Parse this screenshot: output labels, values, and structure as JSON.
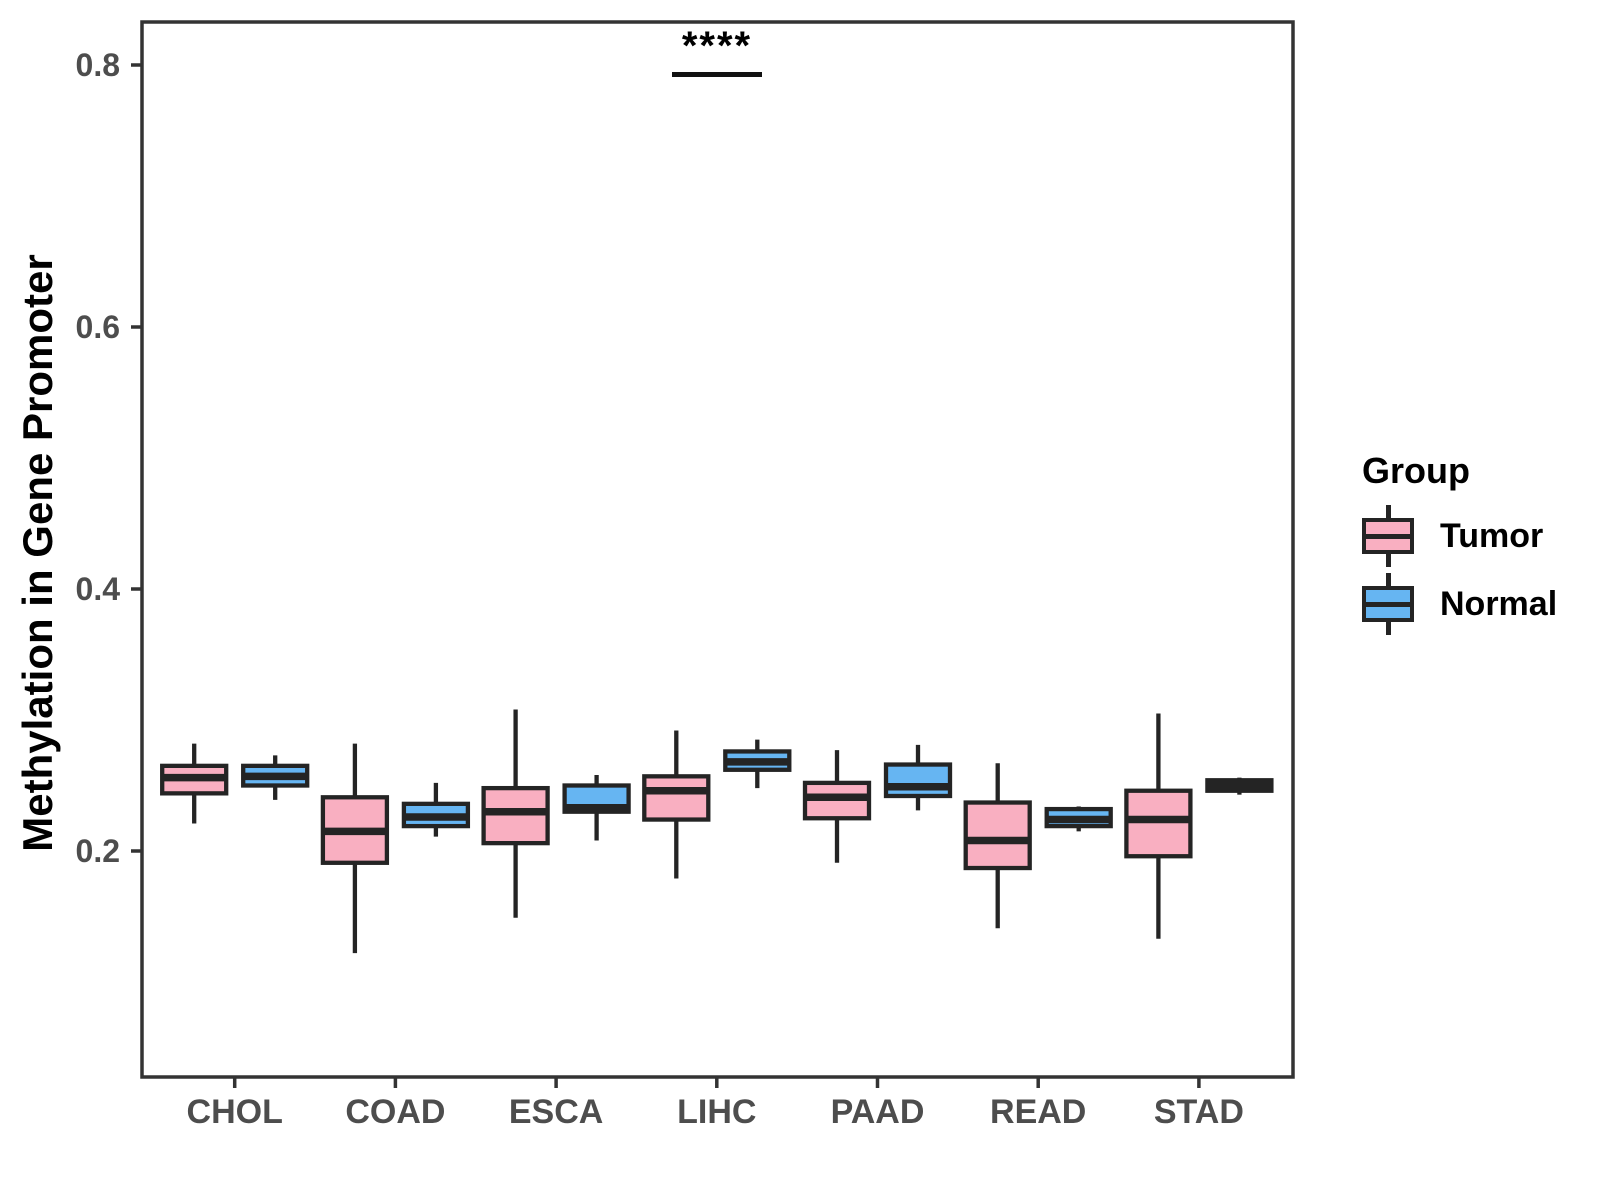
{
  "figure": {
    "background": "#ffffff"
  },
  "chart_data": {
    "type": "boxplot",
    "title": "",
    "xlabel": "",
    "ylabel": "Methylation in Gene Promoter",
    "categories": [
      "CHOL",
      "COAD",
      "ESCA",
      "LIHC",
      "PAAD",
      "READ",
      "STAD"
    ],
    "yticks": [
      0.2,
      0.4,
      0.6,
      0.8
    ],
    "ylim": [
      0.03,
      0.833
    ],
    "grid": false,
    "panel_border": true,
    "legend_position": "right",
    "series": [
      {
        "name": "Tumor",
        "fill": "#F9AFC1",
        "boxes": [
          {
            "min": 0.221,
            "q1": 0.244,
            "median": 0.256,
            "q3": 0.265,
            "max": 0.282
          },
          {
            "min": 0.122,
            "q1": 0.191,
            "median": 0.215,
            "q3": 0.241,
            "max": 0.282
          },
          {
            "min": 0.149,
            "q1": 0.206,
            "median": 0.23,
            "q3": 0.248,
            "max": 0.308
          },
          {
            "min": 0.179,
            "q1": 0.224,
            "median": 0.246,
            "q3": 0.257,
            "max": 0.292
          },
          {
            "min": 0.191,
            "q1": 0.225,
            "median": 0.241,
            "q3": 0.252,
            "max": 0.277
          },
          {
            "min": 0.141,
            "q1": 0.187,
            "median": 0.208,
            "q3": 0.237,
            "max": 0.267
          },
          {
            "min": 0.133,
            "q1": 0.196,
            "median": 0.224,
            "q3": 0.246,
            "max": 0.305
          }
        ]
      },
      {
        "name": "Normal",
        "fill": "#66B5F2",
        "boxes": [
          {
            "min": 0.239,
            "q1": 0.25,
            "median": 0.257,
            "q3": 0.265,
            "max": 0.273
          },
          {
            "min": 0.211,
            "q1": 0.219,
            "median": 0.226,
            "q3": 0.236,
            "max": 0.252
          },
          {
            "min": 0.208,
            "q1": 0.23,
            "median": 0.233,
            "q3": 0.25,
            "max": 0.258
          },
          {
            "min": 0.248,
            "q1": 0.262,
            "median": 0.268,
            "q3": 0.276,
            "max": 0.285
          },
          {
            "min": 0.231,
            "q1": 0.242,
            "median": 0.249,
            "q3": 0.266,
            "max": 0.281
          },
          {
            "min": 0.215,
            "q1": 0.219,
            "median": 0.224,
            "q3": 0.232,
            "max": 0.234
          },
          {
            "min": 0.243,
            "q1": 0.246,
            "median": 0.25,
            "q3": 0.254,
            "max": 0.256
          }
        ]
      }
    ],
    "annotation": {
      "label": "****",
      "category": "LIHC"
    }
  },
  "legend": {
    "title": "Group",
    "items": [
      {
        "label": "Tumor",
        "color": "#F9AFC1"
      },
      {
        "label": "Normal",
        "color": "#66B5F2"
      }
    ]
  },
  "colors": {
    "box_border": "#242424",
    "axis": "#333333",
    "tick_label": "#4d4d4d",
    "text": "#000000"
  }
}
